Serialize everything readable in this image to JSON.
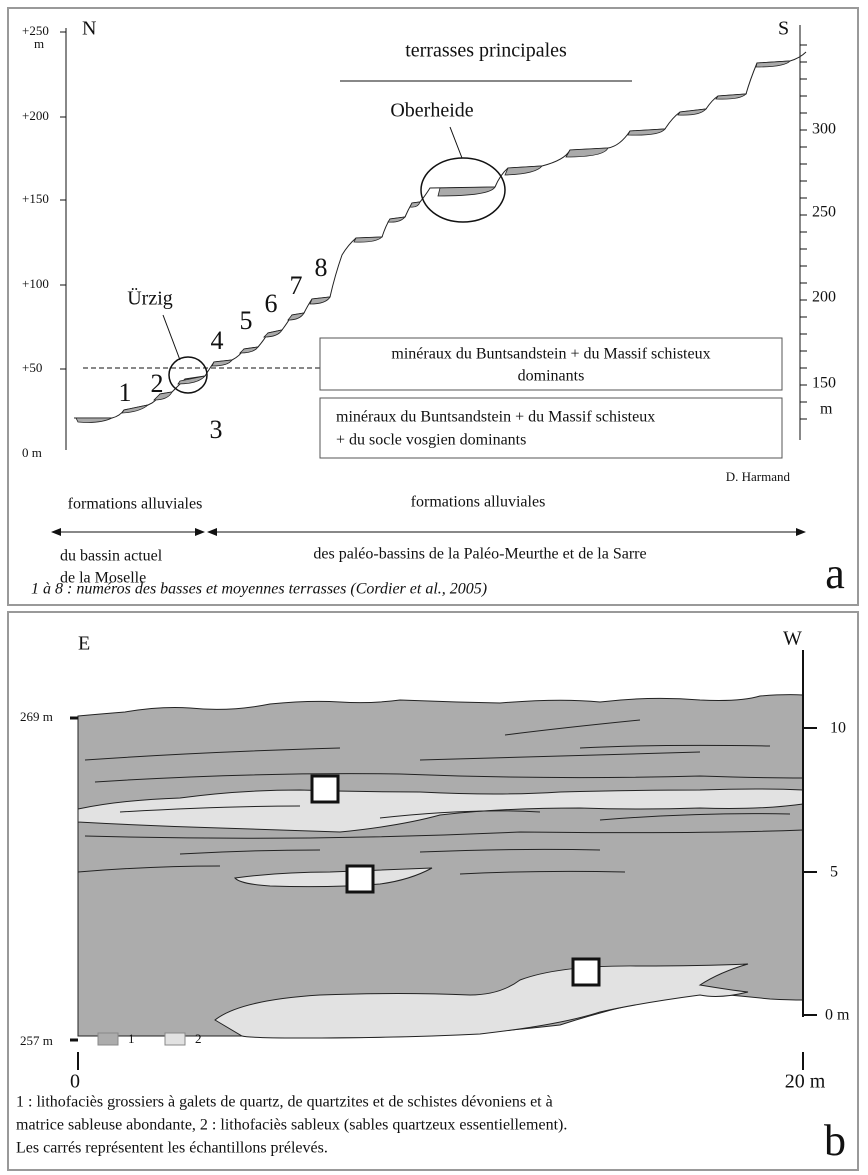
{
  "panel_a": {
    "left_axis": [
      "+250",
      "m",
      "+200",
      "+150",
      "+100",
      "+50",
      "0 m"
    ],
    "right_axis": [
      "300",
      "250",
      "200",
      "150",
      "m"
    ],
    "north": "N",
    "south": "S",
    "title": "terrasses principales",
    "sites": {
      "oberheide": "Oberheide",
      "urzig": "Ürzig"
    },
    "terrace_numbers": [
      "1",
      "2",
      "3",
      "4",
      "5",
      "6",
      "7",
      "8"
    ],
    "boxes": [
      [
        "minéraux du Buntsandstein + du Massif schisteux",
        "dominants"
      ],
      [
        "minéraux du Buntsandstein + du Massif schisteux",
        "+ du socle vosgien dominants"
      ]
    ],
    "credit": "D. Harmand",
    "formations_left": {
      "heading": "formations alluviales",
      "lines": [
        "du bassin actuel",
        "de la Moselle"
      ]
    },
    "formations_right": {
      "heading": "formations alluviales",
      "lines": [
        "des paléo-bassins de la Paléo-Meurthe et de la Sarre"
      ]
    },
    "caption": "1 à 8 : numéros des basses et moyennes terrasses (Cordier et al., 2005)",
    "label": "a"
  },
  "panel_b": {
    "east": "E",
    "west": "W",
    "left_axis": [
      "269 m",
      "257 m"
    ],
    "right_axis": [
      "10",
      "5",
      "0 m"
    ],
    "scale": [
      "0",
      "20 m"
    ],
    "legend": [
      "1",
      "2"
    ],
    "caption": [
      "1 : lithofaciès grossiers à galets de quartz, de quartzites et de schistes dévoniens et à",
      "matrice sableuse abondante, 2 : lithofaciès sableux (sables quartzeux essentiellement).",
      "Les carrés représentent les échantillons prélevés."
    ],
    "label": "b"
  }
}
